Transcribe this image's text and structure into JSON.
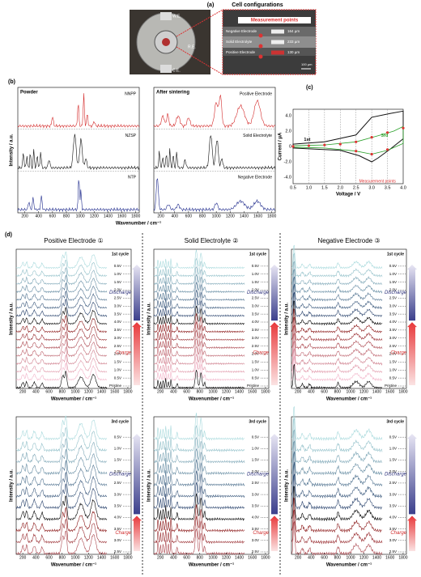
{
  "panel_a": {
    "label": "(a)",
    "title": "Cell configurations",
    "photo_labels": [
      "W.E.",
      "R.E.",
      "C.E."
    ],
    "measurement": "Measurement points",
    "layers": [
      {
        "name": "Negative Electrode",
        "thickness": "164 µm"
      },
      {
        "name": "Solid Electrolyte",
        "thickness": "233 µm"
      },
      {
        "name": "Positive Electrode",
        "thickness": "130 µm"
      }
    ],
    "scale": "100 µm"
  },
  "panel_b": {
    "label": "(b)",
    "left_title": "Powder",
    "right_title": "After sintering",
    "left_traces": [
      "NNPP",
      "NZSP",
      "NTP"
    ],
    "right_traces": [
      "Positive Electrode",
      "Solid Electrolyte",
      "Negative Electrode"
    ],
    "ylabel": "Intensity / a.u.",
    "xlabel": "Wavenumber / cm⁻¹",
    "xticks": [
      "200",
      "400",
      "600",
      "800",
      "1000",
      "1200",
      "1400",
      "1600",
      "1800"
    ]
  },
  "panel_c": {
    "label": "(c)",
    "ylabel": "Current / μA",
    "xlabel": "Voltage / V",
    "xticks": [
      "0.5",
      "1.0",
      "1.5",
      "2.0",
      "2.5",
      "3.0",
      "3.5",
      "4.0"
    ],
    "yticks": [
      "4.0",
      "2.0",
      "0",
      "-2.0",
      "-4.0"
    ],
    "annotations": {
      "first": "1st",
      "third": "3rd",
      "points": "Measurement points"
    }
  },
  "panel_d": {
    "label": "(d)",
    "columns": [
      "Positive Electrode ①",
      "Solid Electrolyte ②",
      "Negative Electrode ③"
    ],
    "ylabel": "Intensity / a.u.",
    "xlabel": "Wavenumber / cm⁻¹",
    "xticks": [
      "200",
      "400",
      "600",
      "800",
      "1000",
      "1200",
      "1400",
      "1600",
      "1800"
    ],
    "discharge": "Discharge",
    "charge": "Charge",
    "cycle_1st": {
      "title": "1st cycle",
      "voltages": [
        "0.5V",
        "1.0V",
        "1.5V",
        "2.0V",
        "2.5V",
        "3.0V",
        "3.5V",
        "4.0V",
        "3.5V",
        "3.0V",
        "2.5V",
        "2.0V",
        "1.5V",
        "1.0V",
        "0.5V",
        "Pristine"
      ]
    },
    "cycle_3rd": {
      "title": "3rd cycle",
      "voltages": [
        "0.5V",
        "1.0V",
        "1.5V",
        "2.0V",
        "2.5V",
        "3.0V",
        "3.5V",
        "4.0V",
        "3.5V",
        "3.0V",
        "2.5V"
      ]
    }
  }
}
